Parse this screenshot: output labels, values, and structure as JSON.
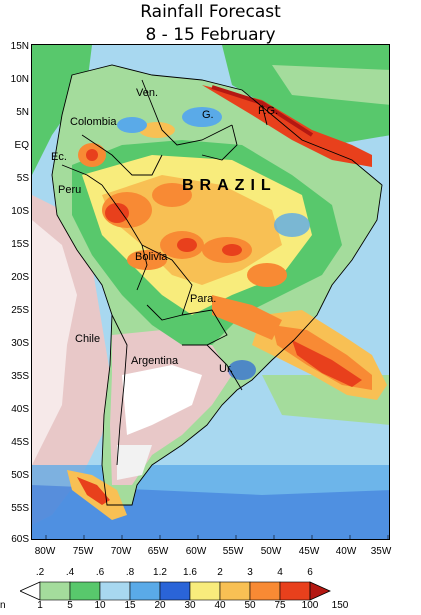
{
  "title_line1": "Rainfall Forecast",
  "title_line2": "8 - 15 February",
  "lat_labels": [
    "15N",
    "10N",
    "5N",
    "EQ",
    "5S",
    "10S",
    "15S",
    "20S",
    "25S",
    "30S",
    "35S",
    "40S",
    "45S",
    "50S",
    "55S",
    "60S"
  ],
  "lon_labels": [
    "80W",
    "75W",
    "70W",
    "65W",
    "60W",
    "55W",
    "50W",
    "45W",
    "40W",
    "35W"
  ],
  "colorbar": {
    "upper_labels": [
      ".2",
      ".4",
      ".6",
      ".8",
      "1.2",
      "1.6",
      "2",
      "3",
      "4",
      "6"
    ],
    "lower_labels": [
      "1",
      "5",
      "10",
      "15",
      "20",
      "30",
      "40",
      "50",
      "75",
      "100",
      "150"
    ],
    "colors": [
      "#ffffff",
      "#a4dc9c",
      "#58c86c",
      "#a8d8f0",
      "#5aaae8",
      "#2a64d8",
      "#f8ec7c",
      "#f8c054",
      "#f88a34",
      "#e8401c",
      "#b41812"
    ]
  },
  "place_labels": {
    "venezuela": "Ven.",
    "guyana": "G.",
    "french_guiana": "F.G.",
    "colombia": "Colombia",
    "ecuador": "Ec.",
    "peru": "Peru",
    "brazil": "BRAZIL",
    "bolivia": "Bolivia",
    "paraguay": "Para.",
    "chile": "Chile",
    "argentina": "Argentina",
    "uruguay": "Ur."
  },
  "cutoff_text_left": "n"
}
